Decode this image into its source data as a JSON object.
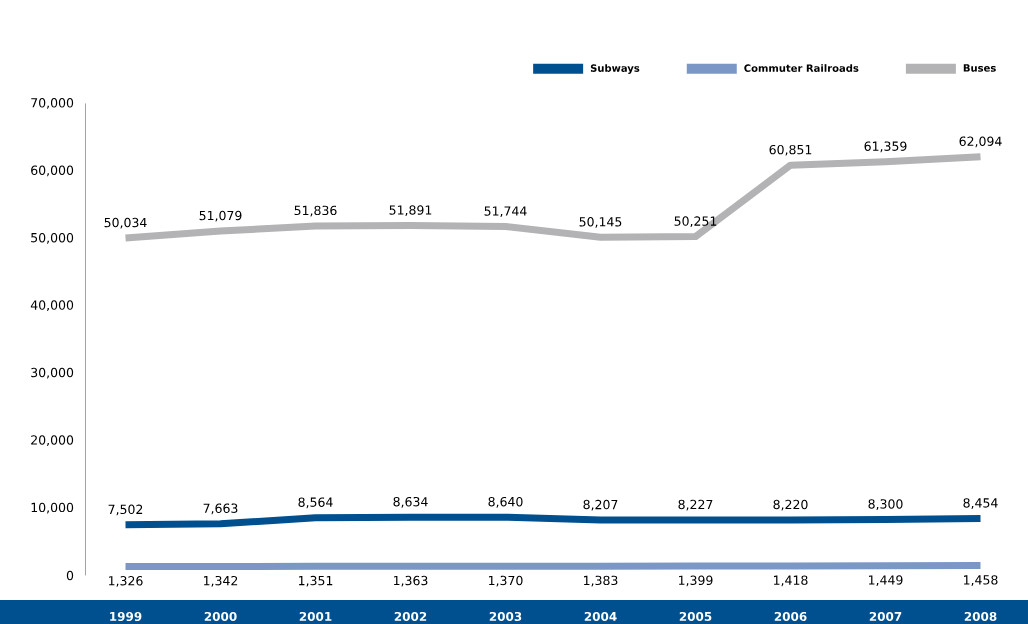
{
  "chart_data": {
    "type": "line",
    "categories": [
      "1999",
      "2000",
      "2001",
      "2002",
      "2003",
      "2004",
      "2005",
      "2006",
      "2007",
      "2008"
    ],
    "series": [
      {
        "name": "Subways",
        "color": "#00508f",
        "values": [
          7502,
          7663,
          8564,
          8634,
          8640,
          8207,
          8227,
          8220,
          8300,
          8454
        ],
        "value_labels": [
          "7,502",
          "7,663",
          "8,564",
          "8,634",
          "8,640",
          "8,207",
          "8,227",
          "8,220",
          "8,300",
          "8,454"
        ]
      },
      {
        "name": "Commuter Railroads",
        "color": "#7b97c6",
        "values": [
          1326,
          1342,
          1351,
          1363,
          1370,
          1383,
          1399,
          1418,
          1449,
          1458
        ],
        "value_labels": [
          "1,326",
          "1,342",
          "1,351",
          "1,363",
          "1,370",
          "1,383",
          "1,399",
          "1,418",
          "1,449",
          "1,458"
        ]
      },
      {
        "name": "Buses",
        "color": "#b3b3b5",
        "values": [
          50034,
          51079,
          51836,
          51891,
          51744,
          50145,
          50251,
          60851,
          61359,
          62094
        ],
        "value_labels": [
          "50,034",
          "51,079",
          "51,836",
          "51,891",
          "51,744",
          "50,145",
          "50,251",
          "60,851",
          "61,359",
          "62,094"
        ]
      }
    ],
    "ylim": [
      0,
      70000
    ],
    "yticks": [
      0,
      {
        "value": 10000,
        "label": "10,000"
      },
      {
        "value": 20000,
        "label": "20,000"
      },
      {
        "value": 30000,
        "label": "30,000"
      },
      {
        "value": 40000,
        "label": "40,000"
      },
      {
        "value": 50000,
        "label": "50,000"
      },
      {
        "value": 60000,
        "label": "60,000"
      },
      {
        "value": 70000,
        "label": "70,000"
      }
    ],
    "legend": "top right"
  }
}
